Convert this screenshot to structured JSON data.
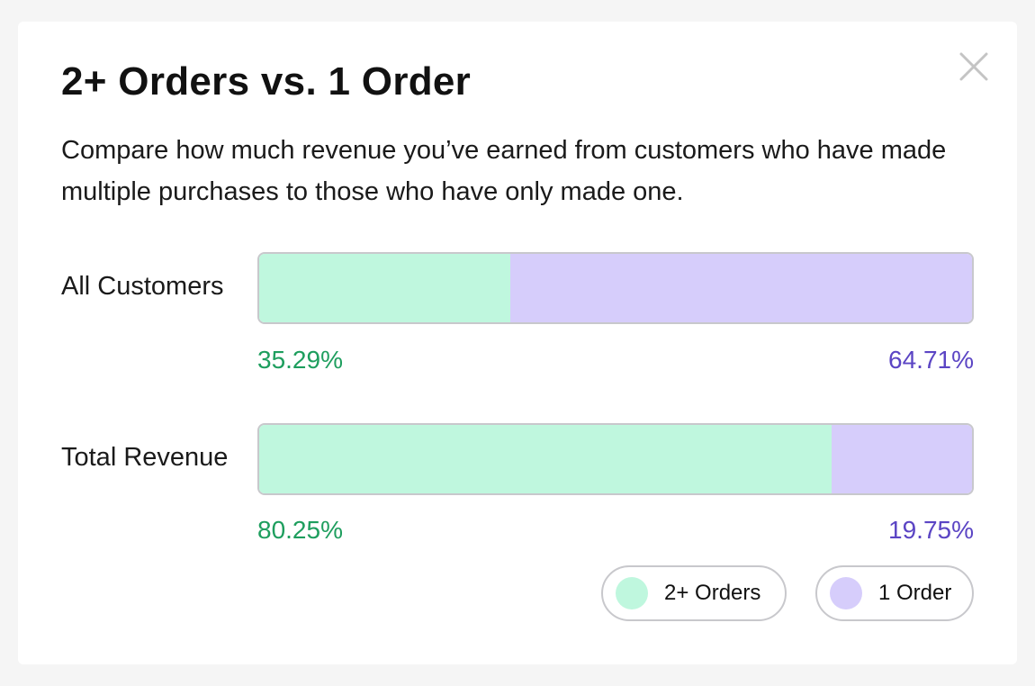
{
  "dialog": {
    "close_icon": "close-icon",
    "title": "2+ Orders vs. 1 Order",
    "subtitle": "Compare how much revenue you’ve earned from customers who have made multiple purchases to those who have only made one."
  },
  "colors": {
    "multi_fill": "#bff7de",
    "single_fill": "#d6cdfb",
    "multi_text": "#1e9e5e",
    "single_text": "#5b45c4"
  },
  "chart_data": {
    "type": "bar",
    "orientation": "horizontal",
    "stacked": "100%",
    "categories": [
      "All Customers",
      "Total Revenue"
    ],
    "series": [
      {
        "name": "2+ Orders",
        "values": [
          35.29,
          80.25
        ],
        "labels": [
          "35.29%",
          "80.25%"
        ]
      },
      {
        "name": "1 Order",
        "values": [
          64.71,
          19.75
        ],
        "labels": [
          "64.71%",
          "19.75%"
        ]
      }
    ],
    "xlim": [
      0,
      100
    ],
    "legend": "bottom-right",
    "grid": false
  }
}
